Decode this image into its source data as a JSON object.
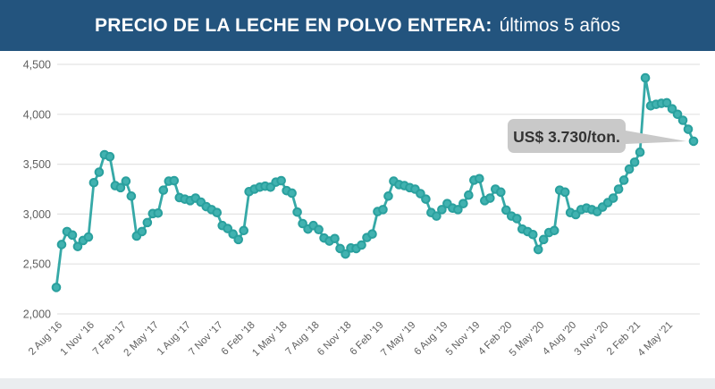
{
  "header": {
    "title_bold": "PRECIO DE LA LECHE EN POLVO ENTERA:",
    "title_regular": "últimos 5 años"
  },
  "annotation": {
    "text": "US$ 3.730/ton."
  },
  "colors": {
    "header_bg": "#23547E",
    "title_text": "#FFFFFF",
    "line": "#36A9A7",
    "marker_fill": "#41B2B0",
    "marker_stroke": "#2AA09E",
    "gridline": "#E3E3E3",
    "axis_text": "#5F5F5F",
    "callout_bg": "#C9C9C9",
    "callout_text": "#333333",
    "footer_strip": "#EAEDEF"
  },
  "chart_data": {
    "type": "line",
    "title": "PRECIO DE LA LECHE EN POLVO ENTERA: últimos 5 años",
    "unit": "US$/ton",
    "ylim": [
      2000,
      4500
    ],
    "y_ticks": [
      2000,
      2500,
      3000,
      3500,
      4000,
      4500
    ],
    "grid": "horizontal",
    "legend": "none",
    "x_tick_labels": [
      "2 Aug '16",
      "1 Nov '16",
      "7 Feb '17",
      "2 May '17",
      "1 Aug '17",
      "7 Nov '17",
      "6 Feb '18",
      "1 May '18",
      "7 Aug '18",
      "6 Nov '18",
      "6 Feb '19",
      "7 May '19",
      "6 Aug '19",
      "5 Nov '19",
      "4 Feb '20",
      "5 May '20",
      "4 Aug '20",
      "3 Nov '20",
      "2 Feb '21",
      "4 May '21"
    ],
    "x_tick_every_n_points": 6,
    "series": [
      {
        "name": "Precio leche en polvo entera (US$/ton)",
        "last_value_label": "US$ 3.730/ton.",
        "values": [
          2265,
          2695,
          2825,
          2790,
          2675,
          2735,
          2770,
          3315,
          3420,
          3595,
          3575,
          3285,
          3265,
          3330,
          3180,
          2780,
          2825,
          2915,
          3005,
          3010,
          3240,
          3330,
          3335,
          3165,
          3150,
          3135,
          3160,
          3120,
          3075,
          3045,
          3015,
          2885,
          2855,
          2800,
          2745,
          2835,
          3225,
          3250,
          3270,
          3280,
          3270,
          3320,
          3335,
          3235,
          3210,
          3020,
          2905,
          2850,
          2885,
          2845,
          2760,
          2730,
          2755,
          2655,
          2600,
          2660,
          2655,
          2690,
          2765,
          2800,
          3025,
          3045,
          3180,
          3330,
          3295,
          3285,
          3265,
          3250,
          3205,
          3150,
          3015,
          2980,
          3045,
          3105,
          3060,
          3045,
          3105,
          3190,
          3340,
          3355,
          3135,
          3160,
          3250,
          3220,
          3040,
          2980,
          2955,
          2850,
          2825,
          2795,
          2645,
          2745,
          2815,
          2835,
          3240,
          3220,
          3015,
          2995,
          3045,
          3060,
          3045,
          3025,
          3070,
          3115,
          3160,
          3250,
          3340,
          3450,
          3520,
          3620,
          4365,
          4085,
          4100,
          4110,
          4115,
          4055,
          4000,
          3940,
          3850,
          3730
        ]
      }
    ]
  }
}
